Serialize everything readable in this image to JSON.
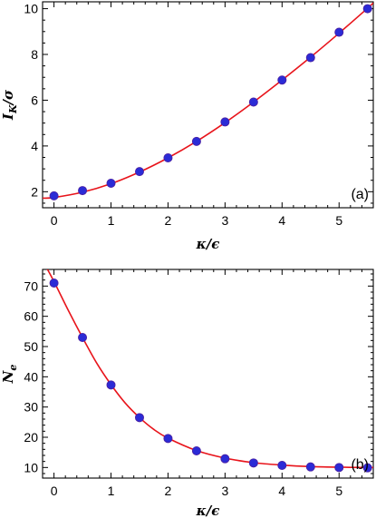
{
  "chart_data": [
    {
      "type": "scatter",
      "panel_label": "(a)",
      "xlabel": "κ/ϵ",
      "ylabel_main": "I",
      "ylabel_sub": "K",
      "ylabel_rest": "/σ",
      "xlim": [
        -0.2,
        5.6
      ],
      "ylim": [
        1.3,
        10.3
      ],
      "xticks": [
        0,
        1,
        2,
        3,
        4,
        5
      ],
      "yticks": [
        2,
        4,
        6,
        8,
        10
      ],
      "grid": false,
      "series": [
        {
          "kind": "points",
          "x": [
            0,
            0.5,
            1,
            1.5,
            2,
            2.5,
            3,
            3.5,
            4,
            4.5,
            5,
            5.5
          ],
          "y": [
            1.82,
            2.05,
            2.37,
            2.88,
            3.48,
            4.2,
            5.05,
            5.92,
            6.88,
            7.86,
            8.97,
            10.0
          ],
          "color": "#2b2bd6"
        },
        {
          "kind": "fit-line",
          "x": [
            -0.2,
            0,
            0.5,
            1,
            1.5,
            2,
            2.5,
            3,
            3.5,
            4,
            4.5,
            5,
            5.5,
            5.6
          ],
          "y": [
            1.72,
            1.75,
            1.98,
            2.35,
            2.86,
            3.48,
            4.2,
            5.02,
            5.92,
            6.88,
            7.88,
            8.93,
            10.02,
            10.25
          ],
          "color": "#e8141b"
        }
      ]
    },
    {
      "type": "scatter",
      "panel_label": "(b)",
      "xlabel": "κ/ϵ",
      "ylabel_main": "N",
      "ylabel_sub": "e",
      "ylabel_rest": "",
      "xlim": [
        -0.2,
        5.6
      ],
      "ylim": [
        6.5,
        75.5
      ],
      "xticks": [
        0,
        1,
        2,
        3,
        4,
        5
      ],
      "yticks": [
        10,
        20,
        30,
        40,
        50,
        60,
        70
      ],
      "grid": false,
      "series": [
        {
          "kind": "points",
          "x": [
            0,
            0.5,
            1,
            1.5,
            2,
            2.5,
            3,
            3.5,
            4,
            4.5,
            5,
            5.5
          ],
          "y": [
            71.0,
            53.0,
            37.3,
            26.5,
            19.6,
            15.5,
            12.9,
            11.5,
            10.7,
            10.2,
            10.0,
            9.9
          ],
          "color": "#2b2bd6"
        },
        {
          "kind": "fit-line",
          "x": [
            -0.2,
            0,
            0.25,
            0.5,
            0.75,
            1,
            1.25,
            1.5,
            1.75,
            2,
            2.5,
            3,
            3.5,
            4,
            4.5,
            5,
            5.5,
            5.6
          ],
          "y": [
            78.5,
            71.5,
            62.0,
            53.0,
            44.5,
            37.4,
            31.3,
            26.5,
            22.6,
            19.7,
            15.6,
            13.1,
            11.6,
            10.8,
            10.3,
            10.1,
            10.0,
            10.0
          ],
          "color": "#e8141b"
        }
      ]
    }
  ]
}
